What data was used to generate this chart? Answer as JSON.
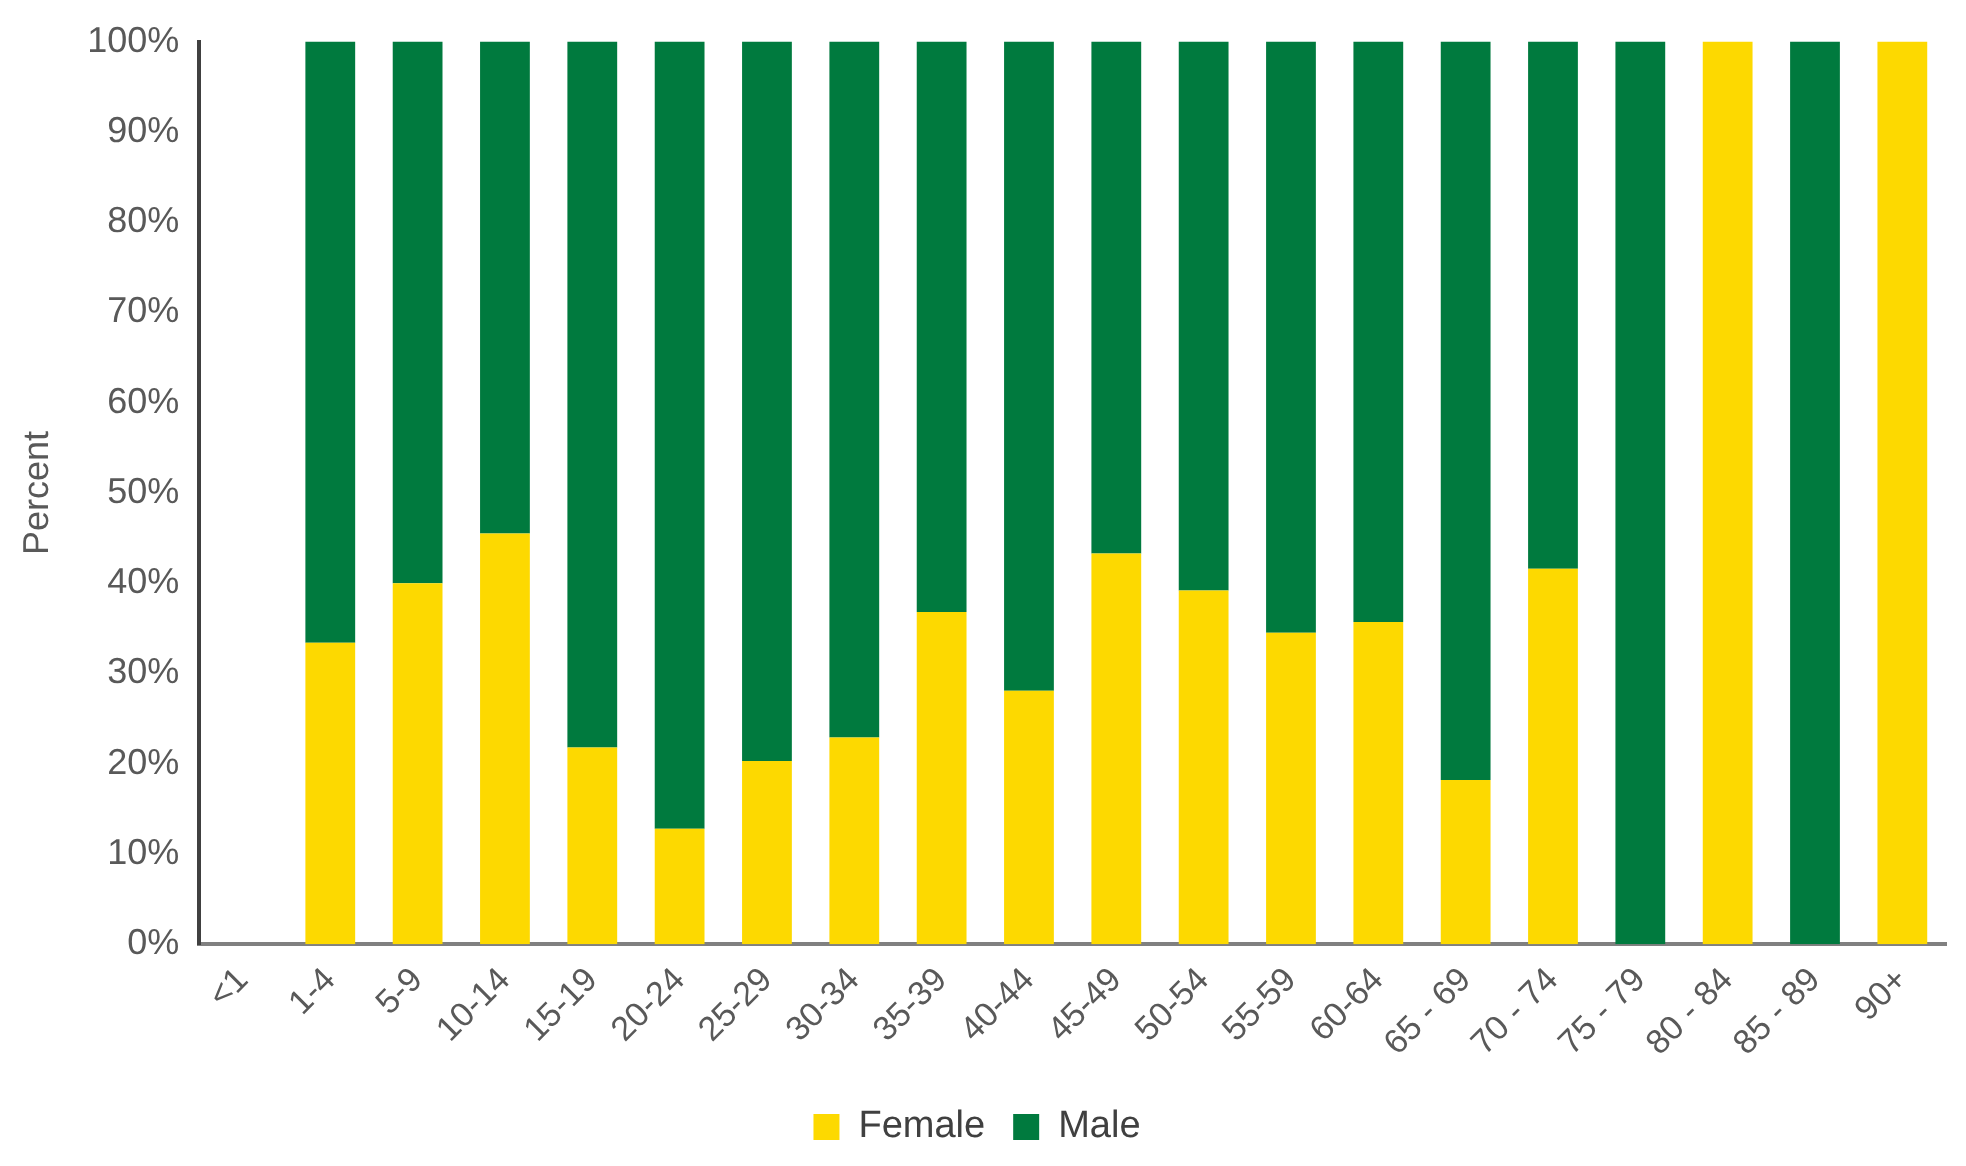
{
  "chart_data": {
    "type": "bar",
    "stacked": true,
    "ylabel": "Percent",
    "categories": [
      "<1",
      "1-4",
      "5-9",
      "10-14",
      "15-19",
      "20-24",
      "25-29",
      "30-34",
      "35-39",
      "40-44",
      "45-49",
      "50-54",
      "55-59",
      "60-64",
      "65 - 69",
      "70 - 74",
      "75 - 79",
      "80 - 84",
      "85 - 89",
      "90+"
    ],
    "series": [
      {
        "name": "Female",
        "color": "#fdd900",
        "values": [
          null,
          33.4,
          40.0,
          45.5,
          21.8,
          12.8,
          20.3,
          22.9,
          36.8,
          28.1,
          43.3,
          39.2,
          34.5,
          35.7,
          18.2,
          41.6,
          0,
          100,
          0,
          100
        ]
      },
      {
        "name": "Male",
        "color": "#007a3e",
        "values": [
          null,
          66.6,
          60.0,
          54.5,
          78.2,
          87.2,
          79.7,
          77.1,
          63.2,
          71.9,
          56.7,
          60.8,
          65.5,
          64.3,
          81.8,
          58.4,
          100,
          0,
          100,
          0
        ]
      }
    ],
    "ylim": [
      0,
      100
    ],
    "yticks": [
      {
        "value": 0,
        "label": "0%"
      },
      {
        "value": 10,
        "label": "10%"
      },
      {
        "value": 20,
        "label": "20%"
      },
      {
        "value": 30,
        "label": "30%"
      },
      {
        "value": 40,
        "label": "40%"
      },
      {
        "value": 50,
        "label": "50%"
      },
      {
        "value": 60,
        "label": "60%"
      },
      {
        "value": 70,
        "label": "70%"
      },
      {
        "value": 80,
        "label": "80%"
      },
      {
        "value": 90,
        "label": "90%"
      },
      {
        "value": 100,
        "label": "100%"
      }
    ],
    "grid": false,
    "legend": "bottom"
  }
}
